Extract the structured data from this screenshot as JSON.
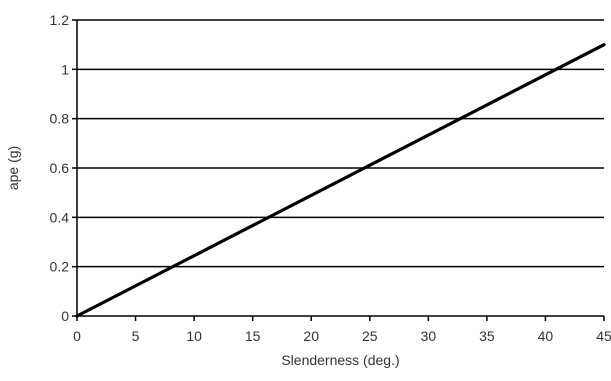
{
  "chart_data": {
    "type": "line",
    "title": "",
    "xlabel": "Slenderness (deg.)",
    "ylabel": "ape (g)",
    "xlim": [
      0,
      45
    ],
    "ylim": [
      0,
      1.2
    ],
    "x_ticks": [
      0,
      5,
      10,
      15,
      20,
      25,
      30,
      35,
      40,
      45
    ],
    "y_ticks": [
      0,
      0.2,
      0.4,
      0.6,
      0.8,
      1,
      1.2
    ],
    "x_tick_labels": [
      "0",
      "5",
      "10",
      "15",
      "20",
      "25",
      "30",
      "35",
      "40",
      "45"
    ],
    "y_tick_labels": [
      "0",
      "0.2",
      "0.4",
      "0.6",
      "0.8",
      "1",
      "1.2"
    ],
    "grid": true,
    "legend": "none",
    "series": [
      {
        "x": [
          0,
          45
        ],
        "y": [
          0,
          1.1
        ],
        "color": "#000000"
      }
    ]
  }
}
